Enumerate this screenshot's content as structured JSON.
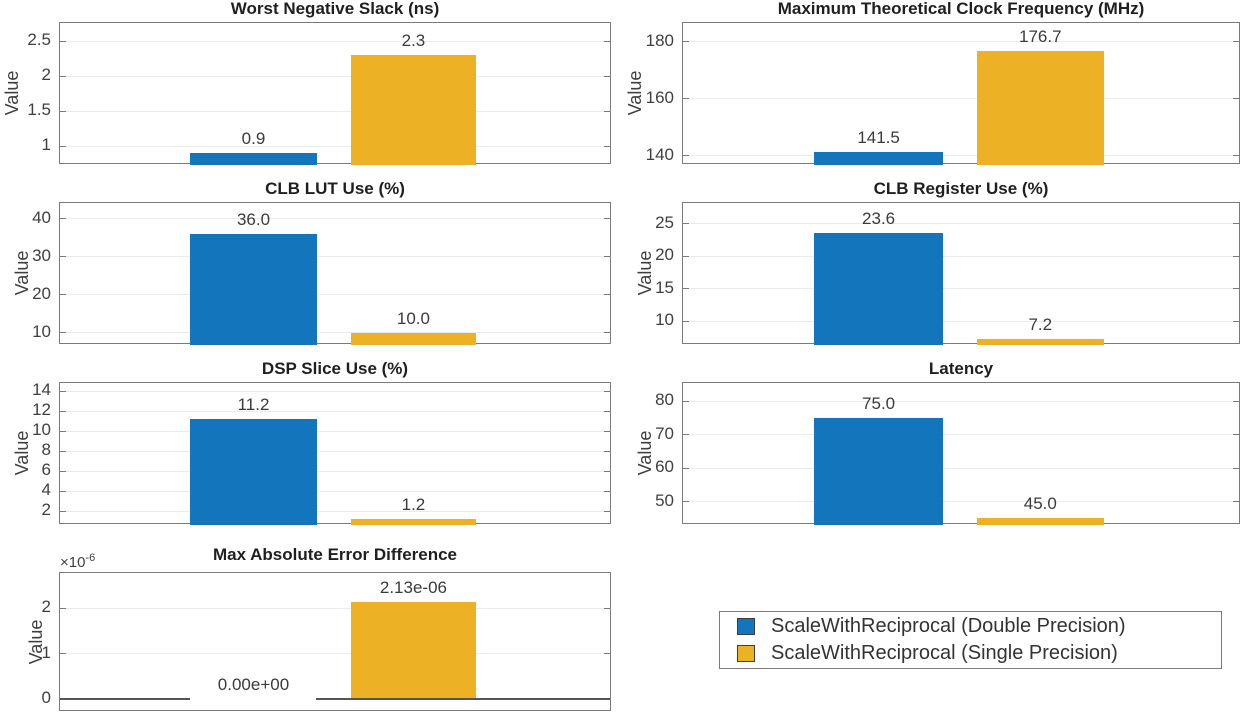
{
  "figure": {
    "background": "#ffffff",
    "ylabel": "Value",
    "series_colors": [
      {
        "name": "ScaleWithReciprocal (Double Precision)",
        "color": "#1375bc"
      },
      {
        "name": "ScaleWithReciprocal (Single Precision)",
        "color": "#ecb124"
      }
    ]
  },
  "legend": {
    "items": [
      {
        "label": "ScaleWithReciprocal (Double Precision)",
        "color": "#1375bc"
      },
      {
        "label": "ScaleWithReciprocal (Single Precision)",
        "color": "#ecb124"
      }
    ]
  },
  "chart_data": [
    {
      "id": "worst-negative-slack",
      "type": "bar",
      "title": "Worst Negative Slack (ns)",
      "ylabel": "Value",
      "yticks": [
        2.5,
        2,
        1.5,
        1
      ],
      "ylim": [
        0.73,
        2.757
      ],
      "categories": [
        "ScaleWithReciprocal (Double Precision)",
        "ScaleWithReciprocal (Single Precision)"
      ],
      "values": [
        0.9,
        2.3
      ],
      "bar_labels": [
        "0.9",
        "2.3"
      ],
      "grid": true,
      "legend_position": "none"
    },
    {
      "id": "max-clock-frequency",
      "type": "bar",
      "title": "Maximum Theoretical Clock Frequency (MHz)",
      "ylabel": "Value",
      "yticks": [
        180,
        160,
        140
      ],
      "ylim": [
        136.8,
        186.6
      ],
      "categories": [
        "ScaleWithReciprocal (Double Precision)",
        "ScaleWithReciprocal (Single Precision)"
      ],
      "values": [
        141.5,
        176.7
      ],
      "bar_labels": [
        "141.5",
        "176.7"
      ],
      "grid": true,
      "legend_position": "none"
    },
    {
      "id": "clb-lut-use",
      "type": "bar",
      "title": "CLB LUT Use (%)",
      "ylabel": "Value",
      "yticks": [
        40,
        30,
        20,
        10
      ],
      "ylim": [
        6.7,
        44.2
      ],
      "categories": [
        "ScaleWithReciprocal (Double Precision)",
        "ScaleWithReciprocal (Single Precision)"
      ],
      "values": [
        36.0,
        10.0
      ],
      "bar_labels": [
        "36.0",
        "10.0"
      ],
      "grid": true,
      "legend_position": "none"
    },
    {
      "id": "clb-register-use",
      "type": "bar",
      "title": "CLB Register Use (%)",
      "ylabel": "Value",
      "yticks": [
        25,
        20,
        15,
        10
      ],
      "ylim": [
        6.3,
        28.2
      ],
      "categories": [
        "ScaleWithReciprocal (Double Precision)",
        "ScaleWithReciprocal (Single Precision)"
      ],
      "values": [
        23.6,
        7.2
      ],
      "bar_labels": [
        "23.6",
        "7.2"
      ],
      "grid": true,
      "legend_position": "none"
    },
    {
      "id": "dsp-slice-use",
      "type": "bar",
      "title": "DSP Slice Use (%)",
      "ylabel": "Value",
      "yticks": [
        14,
        12,
        10,
        8,
        6,
        4,
        2
      ],
      "ylim": [
        0.6,
        14.8
      ],
      "categories": [
        "ScaleWithReciprocal (Double Precision)",
        "ScaleWithReciprocal (Single Precision)"
      ],
      "values": [
        11.2,
        1.2
      ],
      "bar_labels": [
        "11.2",
        "1.2"
      ],
      "grid": true,
      "legend_position": "none"
    },
    {
      "id": "latency",
      "type": "bar",
      "title": "Latency",
      "ylabel": "Value",
      "yticks": [
        80,
        70,
        60,
        50
      ],
      "ylim": [
        43.0,
        85.5
      ],
      "categories": [
        "ScaleWithReciprocal (Double Precision)",
        "ScaleWithReciprocal (Single Precision)"
      ],
      "values": [
        75.0,
        45.0
      ],
      "bar_labels": [
        "75.0",
        "45.0"
      ],
      "grid": true,
      "legend_position": "none"
    },
    {
      "id": "max-abs-error-difference",
      "type": "bar",
      "title": "Max Absolute Error Difference",
      "ylabel": "Value",
      "yticks": [
        2,
        1,
        0
      ],
      "ylim": [
        -0.286,
        2.77
      ],
      "tick_scale": "1e-6",
      "exponent_label": "×10^-6",
      "baseline": 0,
      "categories": [
        "ScaleWithReciprocal (Double Precision)",
        "ScaleWithReciprocal (Single Precision)"
      ],
      "values": [
        0,
        2.13
      ],
      "bar_labels": [
        "0.00e+00",
        "2.13e-06"
      ],
      "grid": true,
      "legend_position": "none"
    }
  ]
}
